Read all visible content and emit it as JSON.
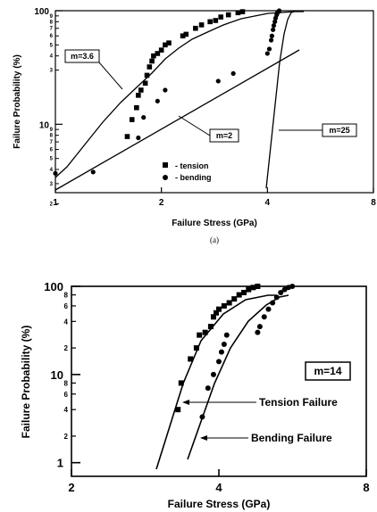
{
  "chart_data": [
    {
      "type": "scatter",
      "title": "",
      "panel_label": "(a)",
      "xlabel": "Failure Stress (GPa)",
      "ylabel": "Failure Probability (%)",
      "x_scale": "log",
      "y_scale": "log",
      "xlim": [
        1,
        8
      ],
      "ylim": [
        2.5,
        100
      ],
      "x_ticks": [
        1,
        2,
        4,
        8
      ],
      "y_major_ticks": [
        10,
        100
      ],
      "y_minor_labels": [
        "9",
        "8",
        "7",
        "6",
        "5",
        "4",
        "3",
        "2",
        "9",
        "8",
        "7",
        "6",
        "5",
        "4",
        "3"
      ],
      "legend_position": "lower-middle",
      "series": [
        {
          "name": "tension",
          "marker": "square",
          "points": [
            {
              "x": 1.6,
              "y": 7.8
            },
            {
              "x": 1.65,
              "y": 11
            },
            {
              "x": 1.7,
              "y": 14
            },
            {
              "x": 1.72,
              "y": 18
            },
            {
              "x": 1.75,
              "y": 20
            },
            {
              "x": 1.8,
              "y": 23
            },
            {
              "x": 1.82,
              "y": 27
            },
            {
              "x": 1.85,
              "y": 32
            },
            {
              "x": 1.88,
              "y": 36
            },
            {
              "x": 1.9,
              "y": 40
            },
            {
              "x": 1.95,
              "y": 42
            },
            {
              "x": 2.0,
              "y": 45
            },
            {
              "x": 2.05,
              "y": 50
            },
            {
              "x": 2.1,
              "y": 52
            },
            {
              "x": 2.3,
              "y": 60
            },
            {
              "x": 2.35,
              "y": 62
            },
            {
              "x": 2.5,
              "y": 70
            },
            {
              "x": 2.6,
              "y": 75
            },
            {
              "x": 2.75,
              "y": 80
            },
            {
              "x": 2.85,
              "y": 82
            },
            {
              "x": 2.95,
              "y": 88
            },
            {
              "x": 3.1,
              "y": 92
            },
            {
              "x": 3.3,
              "y": 96
            },
            {
              "x": 3.4,
              "y": 98
            }
          ]
        },
        {
          "name": "bending",
          "marker": "circle",
          "points": [
            {
              "x": 1.0,
              "y": 3.7
            },
            {
              "x": 1.28,
              "y": 3.8
            },
            {
              "x": 1.72,
              "y": 7.6
            },
            {
              "x": 1.78,
              "y": 11.5
            },
            {
              "x": 1.95,
              "y": 16
            },
            {
              "x": 2.05,
              "y": 20
            },
            {
              "x": 2.9,
              "y": 24
            },
            {
              "x": 3.2,
              "y": 28
            },
            {
              "x": 4.0,
              "y": 42
            },
            {
              "x": 4.05,
              "y": 46
            },
            {
              "x": 4.1,
              "y": 55
            },
            {
              "x": 4.12,
              "y": 60
            },
            {
              "x": 4.15,
              "y": 68
            },
            {
              "x": 4.17,
              "y": 74
            },
            {
              "x": 4.2,
              "y": 80
            },
            {
              "x": 4.22,
              "y": 86
            },
            {
              "x": 4.25,
              "y": 92
            },
            {
              "x": 4.27,
              "y": 96
            },
            {
              "x": 4.3,
              "y": 98
            },
            {
              "x": 4.32,
              "y": 100
            }
          ]
        }
      ],
      "annotations": [
        {
          "text": "m=3.6"
        },
        {
          "text": "m=2"
        },
        {
          "text": "m=25"
        }
      ],
      "legend": [
        {
          "marker": "square",
          "text": "- tension"
        },
        {
          "marker": "circle",
          "text": "- bending"
        }
      ]
    },
    {
      "type": "scatter",
      "title": "",
      "xlabel": "Failure Stress (GPa)",
      "ylabel": "Failure Probability (%)",
      "x_scale": "log",
      "y_scale": "log",
      "xlim": [
        2,
        8
      ],
      "ylim": [
        0.7,
        100
      ],
      "x_ticks": [
        2,
        4,
        8
      ],
      "y_major_ticks": [
        1,
        10,
        100
      ],
      "y_minor_labels": [
        "8",
        "6",
        "4",
        "2",
        "8",
        "6",
        "4",
        "2"
      ],
      "series": [
        {
          "name": "Tension Failure",
          "marker": "square",
          "points": [
            {
              "x": 3.3,
              "y": 4
            },
            {
              "x": 3.35,
              "y": 8
            },
            {
              "x": 3.5,
              "y": 15
            },
            {
              "x": 3.6,
              "y": 20
            },
            {
              "x": 3.65,
              "y": 28
            },
            {
              "x": 3.75,
              "y": 30
            },
            {
              "x": 3.85,
              "y": 35
            },
            {
              "x": 3.9,
              "y": 45
            },
            {
              "x": 3.95,
              "y": 50
            },
            {
              "x": 4.0,
              "y": 55
            },
            {
              "x": 4.1,
              "y": 60
            },
            {
              "x": 4.2,
              "y": 65
            },
            {
              "x": 4.3,
              "y": 72
            },
            {
              "x": 4.4,
              "y": 80
            },
            {
              "x": 4.5,
              "y": 85
            },
            {
              "x": 4.6,
              "y": 92
            },
            {
              "x": 4.7,
              "y": 97
            },
            {
              "x": 4.8,
              "y": 100
            }
          ]
        },
        {
          "name": "Bending Failure",
          "marker": "circle",
          "points": [
            {
              "x": 3.7,
              "y": 3.3
            },
            {
              "x": 3.8,
              "y": 7
            },
            {
              "x": 3.9,
              "y": 10
            },
            {
              "x": 4.0,
              "y": 14
            },
            {
              "x": 4.05,
              "y": 18
            },
            {
              "x": 4.1,
              "y": 22
            },
            {
              "x": 4.15,
              "y": 28
            },
            {
              "x": 4.8,
              "y": 30
            },
            {
              "x": 4.85,
              "y": 35
            },
            {
              "x": 4.95,
              "y": 45
            },
            {
              "x": 5.05,
              "y": 55
            },
            {
              "x": 5.15,
              "y": 65
            },
            {
              "x": 5.25,
              "y": 75
            },
            {
              "x": 5.35,
              "y": 85
            },
            {
              "x": 5.45,
              "y": 92
            },
            {
              "x": 5.55,
              "y": 97
            },
            {
              "x": 5.65,
              "y": 100
            }
          ]
        }
      ],
      "annotations": [
        {
          "text": "m=14"
        },
        {
          "text": "Tension Failure"
        },
        {
          "text": "Bending Failure"
        }
      ]
    }
  ]
}
